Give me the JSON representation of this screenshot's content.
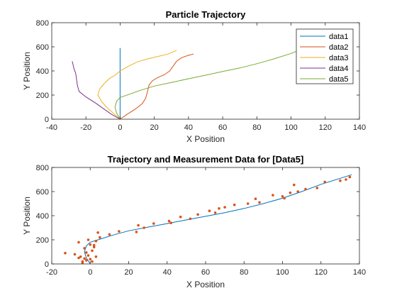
{
  "chart_data": [
    {
      "type": "line",
      "title": "Particle Trajectory",
      "xlabel": "X Position",
      "ylabel": "Y Position",
      "xlim": [
        -40,
        140
      ],
      "ylim": [
        0,
        800
      ],
      "xticks": [
        -40,
        -20,
        0,
        20,
        40,
        60,
        80,
        100,
        120,
        140
      ],
      "yticks": [
        0,
        200,
        400,
        600,
        800
      ],
      "grid": false,
      "legend_position": "top-right",
      "series": [
        {
          "name": "data1",
          "color": "#0072BD",
          "x": [
            0,
            0
          ],
          "y": [
            0,
            590
          ]
        },
        {
          "name": "data2",
          "color": "#D95319",
          "x": [
            0,
            4,
            9,
            13,
            15,
            16,
            17,
            19,
            22,
            26,
            29,
            31,
            33,
            36,
            40,
            43
          ],
          "y": [
            0,
            40,
            85,
            130,
            175,
            230,
            285,
            320,
            345,
            370,
            400,
            440,
            480,
            510,
            530,
            540
          ]
        },
        {
          "name": "data3",
          "color": "#EDB120",
          "x": [
            0,
            -4,
            -8,
            -11,
            -13,
            -12,
            -9,
            -6,
            -3,
            0,
            5,
            10,
            16,
            22,
            28,
            33
          ],
          "y": [
            0,
            50,
            100,
            150,
            200,
            250,
            300,
            340,
            365,
            400,
            440,
            475,
            500,
            520,
            540,
            570
          ]
        },
        {
          "name": "data4",
          "color": "#7E2F8E",
          "x": [
            0,
            -5,
            -10,
            -15,
            -20,
            -24,
            -25,
            -25.5,
            -26,
            -27,
            -27.5,
            -28
          ],
          "y": [
            0,
            40,
            90,
            140,
            185,
            230,
            280,
            330,
            380,
            420,
            450,
            480
          ]
        },
        {
          "name": "data5",
          "color": "#77AC30",
          "x": [
            0,
            -2,
            -3,
            -2,
            0,
            5,
            12,
            20,
            30,
            40,
            50,
            60,
            70,
            80,
            90,
            100,
            110,
            120,
            130,
            136
          ],
          "y": [
            0,
            50,
            100,
            150,
            180,
            205,
            240,
            275,
            305,
            335,
            365,
            395,
            425,
            460,
            500,
            545,
            600,
            660,
            710,
            740
          ]
        }
      ]
    },
    {
      "type": "scatter",
      "title": "Trajectory and Measurement Data for [Data5]",
      "xlabel": "X Position",
      "ylabel": "Y Position",
      "xlim": [
        -20,
        140
      ],
      "ylim": [
        0,
        800
      ],
      "xticks": [
        -20,
        0,
        20,
        40,
        60,
        80,
        100,
        120,
        140
      ],
      "yticks": [
        0,
        200,
        400,
        600,
        800
      ],
      "grid": false,
      "line": {
        "color": "#0072BD",
        "x": [
          0,
          -2,
          -3,
          -2,
          0,
          5,
          12,
          20,
          30,
          40,
          50,
          60,
          70,
          80,
          90,
          100,
          110,
          120,
          130,
          136
        ],
        "y": [
          0,
          50,
          100,
          150,
          180,
          205,
          240,
          275,
          305,
          335,
          365,
          395,
          425,
          460,
          500,
          545,
          600,
          660,
          710,
          740
        ]
      },
      "points": {
        "color": "#D95319",
        "x": [
          -13,
          -8,
          -6,
          -5,
          -4,
          -3,
          -3,
          -2,
          -1,
          -1,
          0,
          0,
          1,
          1,
          2,
          2,
          3,
          3,
          4,
          5,
          -6,
          -4,
          -2,
          10,
          15,
          24,
          25,
          28,
          33,
          41,
          42,
          47,
          52,
          56,
          62,
          65,
          67,
          70,
          75,
          82,
          86,
          88,
          95,
          100,
          101,
          104,
          106,
          108,
          112,
          118,
          122,
          130,
          133,
          135
        ],
        "y": [
          90,
          80,
          180,
          60,
          20,
          45,
          130,
          95,
          200,
          70,
          40,
          160,
          110,
          20,
          155,
          140,
          60,
          190,
          260,
          220,
          50,
          10,
          30,
          245,
          270,
          265,
          320,
          300,
          335,
          355,
          340,
          390,
          375,
          410,
          440,
          425,
          460,
          470,
          490,
          500,
          540,
          510,
          570,
          560,
          545,
          590,
          655,
          600,
          620,
          630,
          680,
          690,
          700,
          720
        ]
      }
    }
  ]
}
